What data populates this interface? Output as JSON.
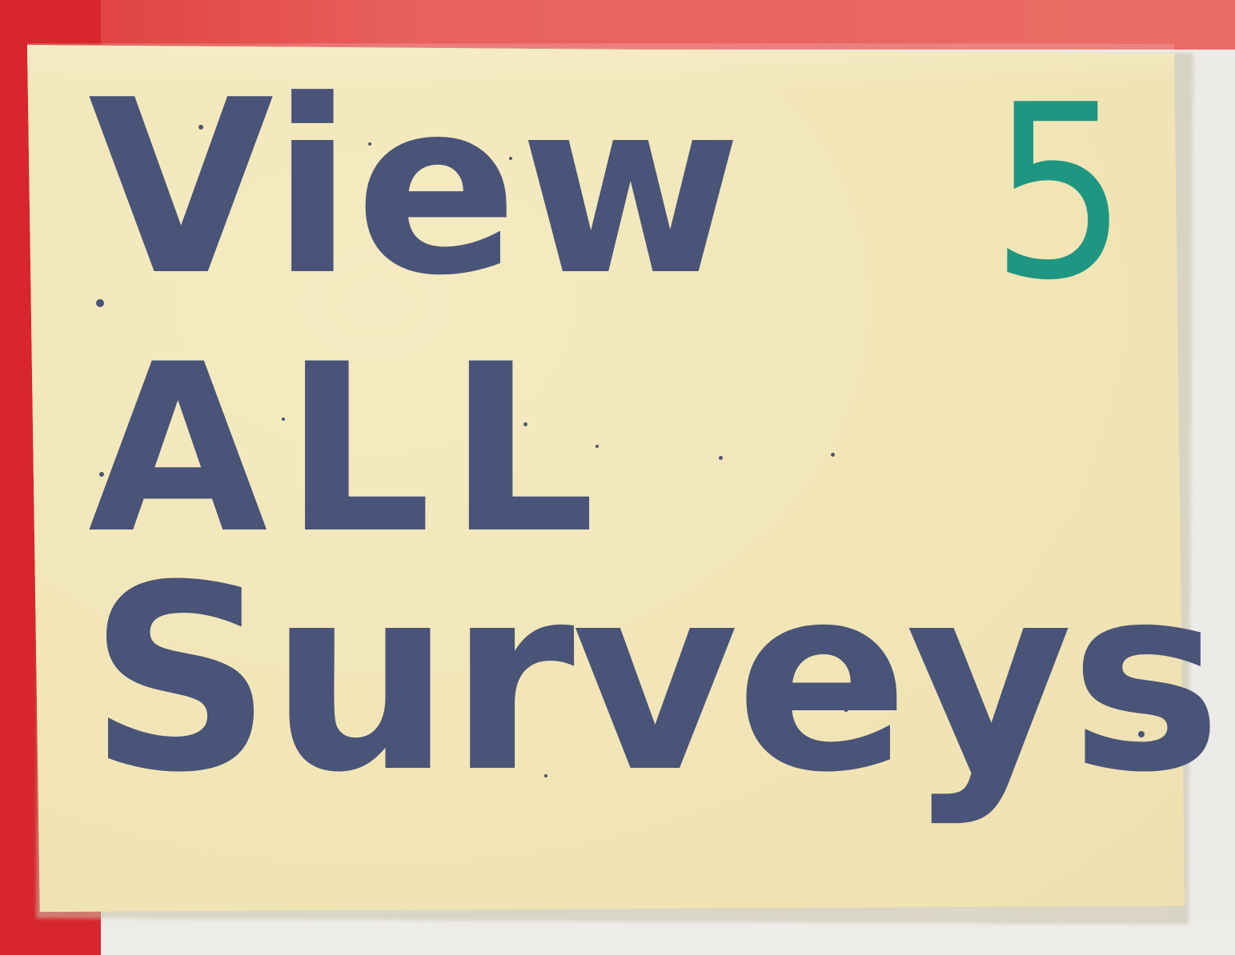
{
  "note": {
    "lines": [
      "View",
      "ALL",
      "Surveys"
    ],
    "number": "5"
  },
  "colors": {
    "note_paper": "#f2e6b9",
    "ink_blue": "#4a5478",
    "ink_green": "#1f9682",
    "red_paper": "#d8262d",
    "wall": "#efede9"
  }
}
